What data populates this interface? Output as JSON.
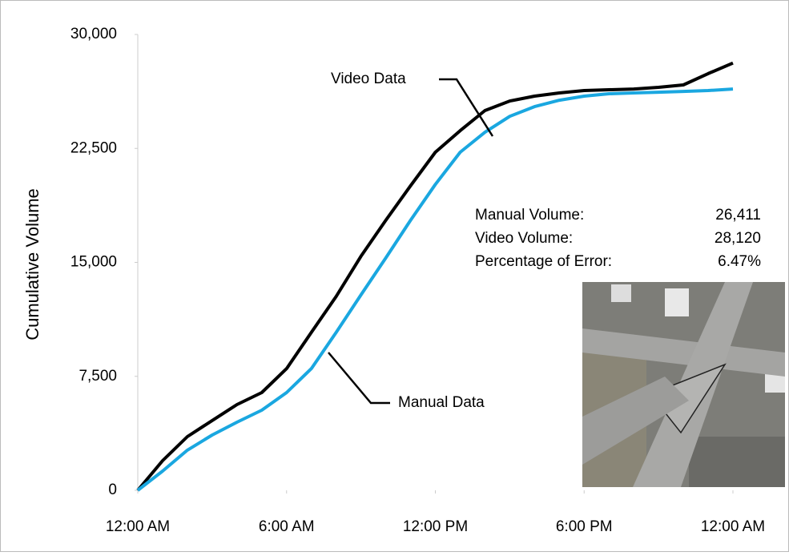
{
  "chart_data": {
    "type": "line",
    "y_label": "Cumulative Volume",
    "x": [
      0,
      1,
      2,
      3,
      4,
      5,
      6,
      7,
      8,
      9,
      10,
      11,
      12,
      13,
      14,
      15,
      16,
      17,
      18,
      19,
      20,
      21,
      22,
      23,
      24
    ],
    "xlim": [
      0,
      24
    ],
    "xticks": [
      {
        "value": 0,
        "label": "12:00 AM"
      },
      {
        "value": 6,
        "label": "6:00 AM"
      },
      {
        "value": 12,
        "label": "12:00 PM"
      },
      {
        "value": 18,
        "label": "6:00 PM"
      },
      {
        "value": 24,
        "label": "12:00 AM"
      }
    ],
    "ylim": [
      0,
      30000
    ],
    "yticks": [
      0,
      {
        "value": 7500,
        "label": "7,500"
      },
      {
        "value": 15000,
        "label": "15,000"
      },
      {
        "value": 22500,
        "label": "22,500"
      },
      {
        "value": 30000,
        "label": "30,000"
      }
    ],
    "series": [
      {
        "name": "Video Data",
        "color": "#000000",
        "values": [
          0,
          1950,
          3530,
          4590,
          5640,
          6430,
          8010,
          10390,
          12760,
          15400,
          17770,
          20040,
          22250,
          23670,
          24990,
          25620,
          25940,
          26150,
          26310,
          26360,
          26410,
          26520,
          26680,
          27420,
          28120
        ]
      },
      {
        "name": "Manual Data",
        "color": "#1aa7e0",
        "values": [
          0,
          1265,
          2640,
          3640,
          4480,
          5270,
          6430,
          8010,
          10390,
          12860,
          15290,
          17770,
          20130,
          22250,
          23560,
          24610,
          25250,
          25670,
          25940,
          26100,
          26150,
          26200,
          26250,
          26310,
          26411
        ]
      }
    ],
    "stats": [
      {
        "label": "Manual Volume:",
        "value": "26,411"
      },
      {
        "label": "Video Volume:",
        "value": "28,120"
      },
      {
        "label": "Percentage of Error:",
        "value": "6.47%"
      }
    ]
  }
}
